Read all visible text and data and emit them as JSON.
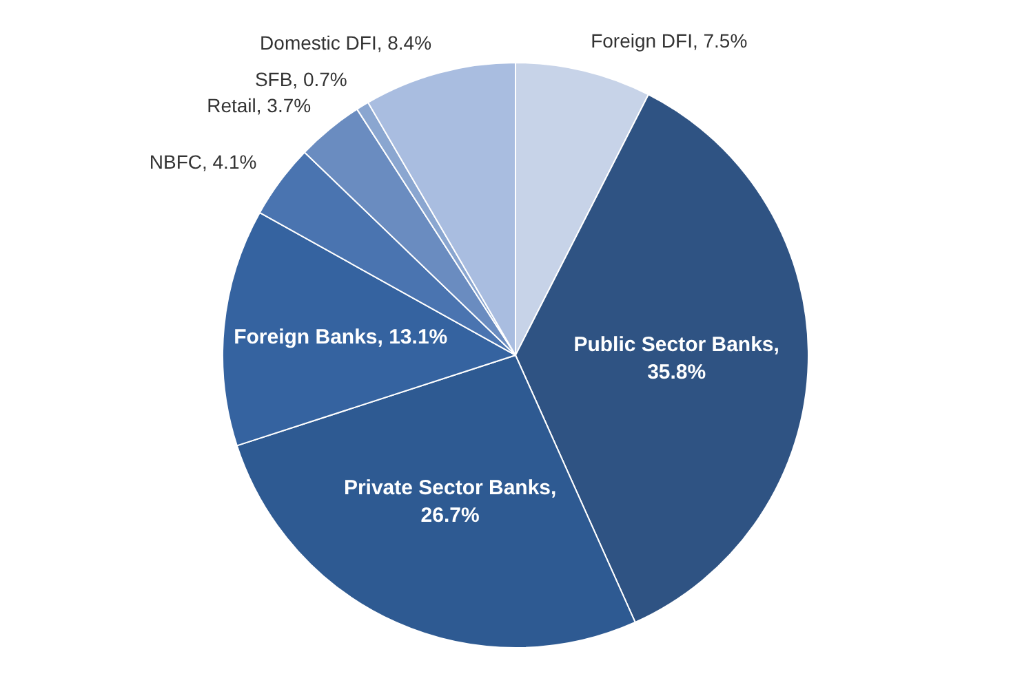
{
  "chart_data": {
    "type": "pie",
    "categories": [
      "Foreign DFI",
      "Public Sector Banks",
      "Private Sector Banks",
      "Foreign Banks",
      "NBFC",
      "Retail",
      "SFB",
      "Domestic DFI"
    ],
    "values": [
      7.5,
      35.8,
      26.7,
      13.1,
      4.1,
      3.7,
      0.7,
      8.4
    ],
    "colors": [
      "#c7d3e8",
      "#2f5383",
      "#2e5a92",
      "#3563a0",
      "#4a74b0",
      "#6a8cc0",
      "#8aa6d0",
      "#a9bde0"
    ],
    "value_labels": [
      ", 7.5%",
      ", 35.8%",
      ", 26.7%",
      ", 13.1%",
      ", 4.1%",
      ", 3.7%",
      ", 0.7%",
      ", 8.4%"
    ],
    "legend": false
  }
}
